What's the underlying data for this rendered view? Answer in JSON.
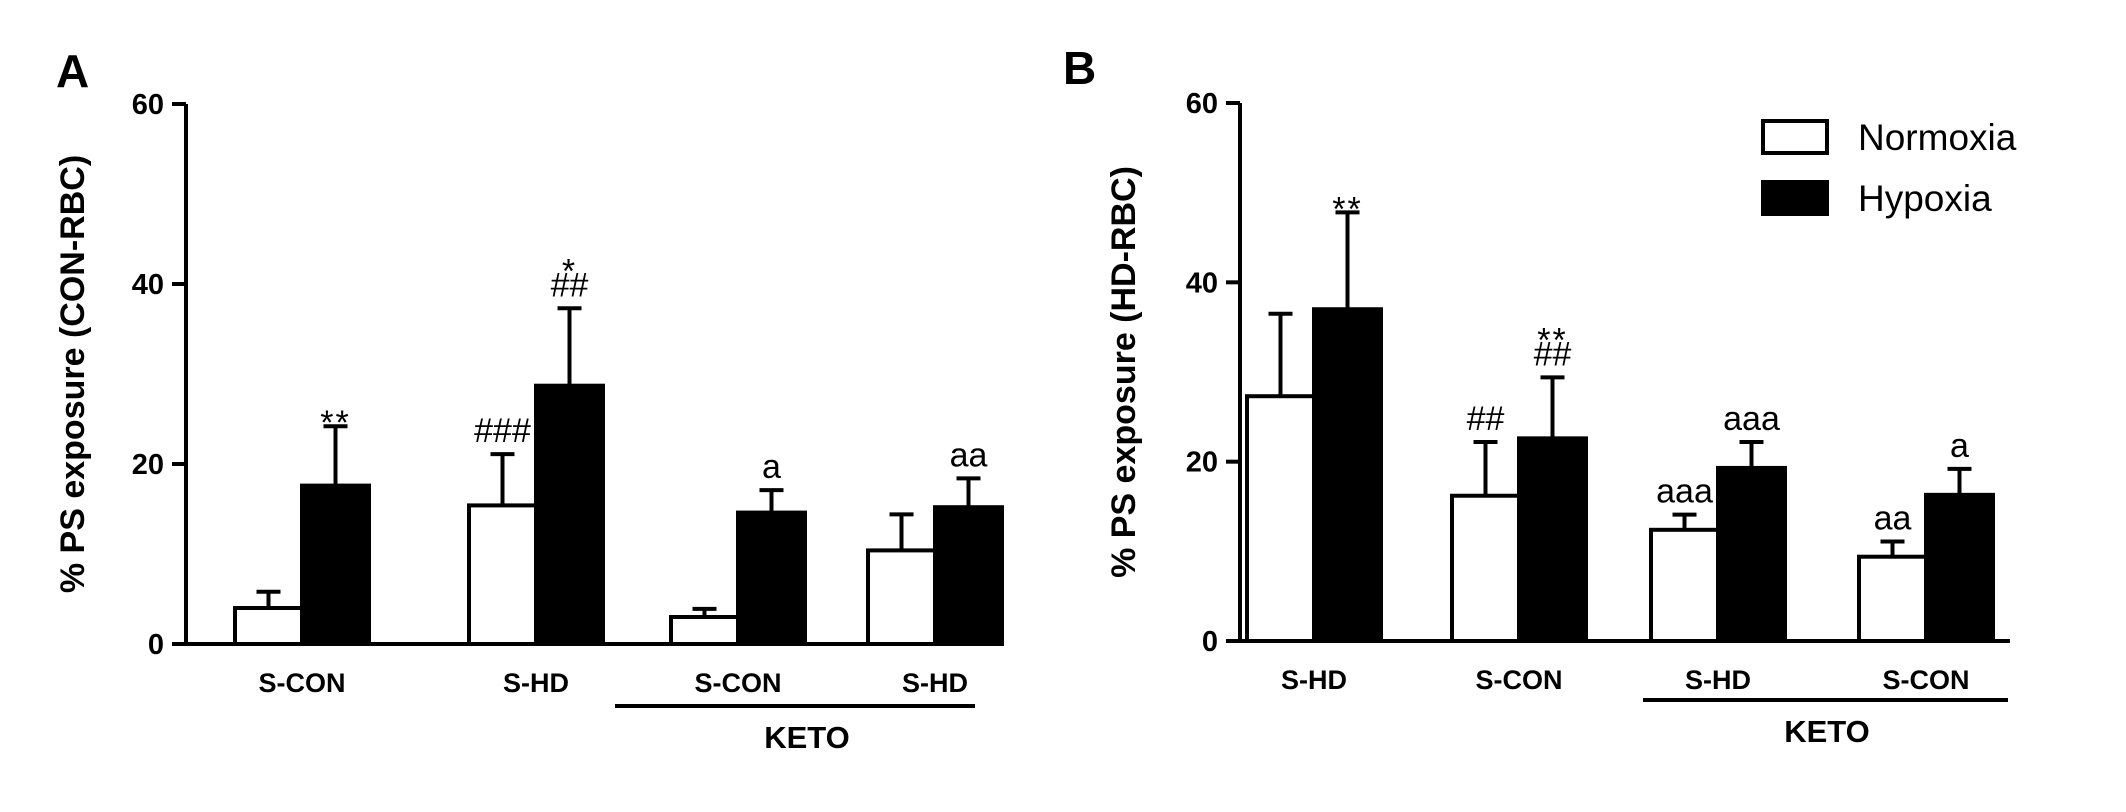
{
  "legend": [
    {
      "label": "Normoxia",
      "fill": "#ffffff"
    },
    {
      "label": "Hypoxia",
      "fill": "#000000"
    }
  ],
  "chart_data": [
    {
      "type": "bar",
      "panel_label": "A",
      "ylabel": "% PS exposure (CON-RBC)",
      "ylim": [
        0,
        60
      ],
      "yticks": [
        "0",
        "20",
        "40",
        "60"
      ],
      "categories": [
        "S-CON",
        "S-HD",
        "S-CON",
        "S-HD"
      ],
      "group_label": "KETO",
      "series": [
        {
          "name": "Normoxia",
          "values": [
            4,
            15.4,
            3,
            10.4
          ],
          "errors": [
            1.8,
            5.7,
            0.9,
            4.0
          ]
        },
        {
          "name": "Hypoxia",
          "values": [
            17.6,
            28.7,
            14.6,
            15.2
          ],
          "errors": [
            6.6,
            8.6,
            2.5,
            3.2
          ]
        }
      ],
      "annotations": [
        {
          "category": 0,
          "series": 1,
          "lines": [
            "**"
          ]
        },
        {
          "category": 1,
          "series": 0,
          "lines": [
            "###"
          ]
        },
        {
          "category": 1,
          "series": 1,
          "lines": [
            "*",
            "##"
          ]
        },
        {
          "category": 2,
          "series": 1,
          "lines": [
            "a"
          ]
        },
        {
          "category": 3,
          "series": 1,
          "lines": [
            "aa"
          ]
        }
      ]
    },
    {
      "type": "bar",
      "panel_label": "B",
      "ylabel": "% PS exposure (HD-RBC)",
      "ylim": [
        0,
        60
      ],
      "yticks": [
        "0",
        "20",
        "40",
        "60"
      ],
      "categories": [
        "S-HD",
        "S-CON",
        "S-HD",
        "S-CON"
      ],
      "group_label": "KETO",
      "series": [
        {
          "name": "Normoxia",
          "values": [
            27.3,
            16.2,
            12.4,
            9.4
          ],
          "errors": [
            9.2,
            6.0,
            1.7,
            1.7
          ]
        },
        {
          "name": "Hypoxia",
          "values": [
            37,
            22.6,
            19.3,
            16.3
          ],
          "errors": [
            10.8,
            6.8,
            2.9,
            2.9
          ]
        }
      ],
      "annotations": [
        {
          "category": 0,
          "series": 1,
          "lines": [
            "**"
          ]
        },
        {
          "category": 1,
          "series": 0,
          "lines": [
            "##"
          ]
        },
        {
          "category": 1,
          "series": 1,
          "lines": [
            "**",
            "##"
          ]
        },
        {
          "category": 2,
          "series": 0,
          "lines": [
            "aaa"
          ]
        },
        {
          "category": 2,
          "series": 1,
          "lines": [
            "aaa"
          ]
        },
        {
          "category": 3,
          "series": 0,
          "lines": [
            "aa"
          ]
        },
        {
          "category": 3,
          "series": 1,
          "lines": [
            "a"
          ]
        }
      ]
    }
  ]
}
